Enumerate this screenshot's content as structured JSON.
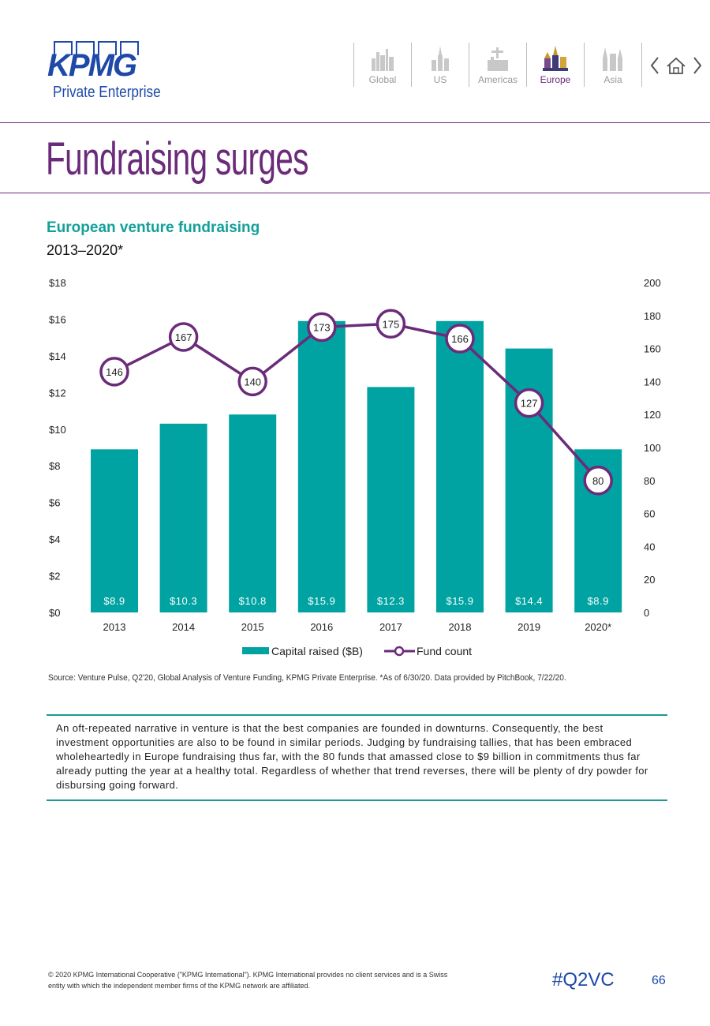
{
  "header": {
    "logo_text": "KPMG",
    "logo_subtitle": "Private Enterprise",
    "nav": [
      {
        "label": "Global",
        "active": false
      },
      {
        "label": "US",
        "active": false
      },
      {
        "label": "Americas",
        "active": false
      },
      {
        "label": "Europe",
        "active": true
      },
      {
        "label": "Asia",
        "active": false
      }
    ]
  },
  "page": {
    "title": "Fundraising surges",
    "source": "Source: Venture Pulse, Q2'20, Global Analysis of Venture Funding, KPMG Private Enterprise. *As of 6/30/20. Data provided by PitchBook, 7/22/20.",
    "narrative": "An oft-repeated narrative in venture is that the best companies are founded in downturns. Consequently, the best investment opportunities are also to be found in similar periods. Judging by fundraising tallies, that has been embraced wholeheartedly in Europe fundraising thus far, with the 80 funds that amassed close to $9 billion in commitments thus far already putting the year at a healthy total. Regardless of whether that trend reverses, there will be plenty of dry powder for disbursing going forward.",
    "footer_legal": "© 2020 KPMG International Cooperative (\"KPMG International\"). KPMG International provides no client services and is a Swiss entity with which the independent member firms of the KPMG network are affiliated.",
    "hashtag": "#Q2VC",
    "page_number": "66"
  },
  "colors": {
    "bar": "#00a3a1",
    "line": "#6b2b7a",
    "brand_blue": "#1e49a8",
    "title_purple": "#6b2b7a"
  },
  "chart_data": {
    "type": "bar",
    "title": "European venture fundraising",
    "subtitle": "2013–2020*",
    "categories": [
      "2013",
      "2014",
      "2015",
      "2016",
      "2017",
      "2018",
      "2019",
      "2020*"
    ],
    "series": [
      {
        "name": "Capital raised ($B)",
        "type": "bar",
        "axis": "left",
        "values": [
          8.9,
          10.3,
          10.8,
          15.9,
          12.3,
          15.9,
          14.4,
          8.9
        ],
        "labels": [
          "$8.9",
          "$10.3",
          "$10.8",
          "$15.9",
          "$12.3",
          "$15.9",
          "$14.4",
          "$8.9"
        ]
      },
      {
        "name": "Fund count",
        "type": "line",
        "axis": "right",
        "values": [
          146,
          167,
          140,
          173,
          175,
          166,
          127,
          80
        ],
        "labels": [
          "146",
          "167",
          "140",
          "173",
          "175",
          "166",
          "127",
          "80"
        ]
      }
    ],
    "y_left": {
      "min": 0,
      "max": 18,
      "ticks": [
        "$0",
        "$2",
        "$4",
        "$6",
        "$8",
        "$10",
        "$12",
        "$14",
        "$16",
        "$18"
      ]
    },
    "y_right": {
      "min": 0,
      "max": 200,
      "ticks": [
        "0",
        "20",
        "40",
        "60",
        "80",
        "100",
        "120",
        "140",
        "160",
        "180",
        "200"
      ]
    },
    "legend": [
      "Capital raised ($B)",
      "Fund count"
    ],
    "legend_position": "bottom",
    "grid": false
  }
}
